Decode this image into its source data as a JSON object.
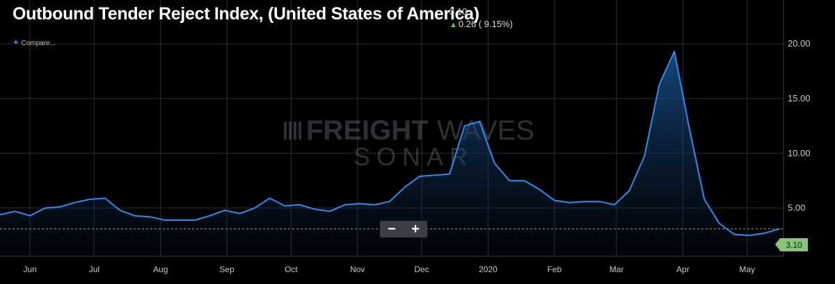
{
  "header": {
    "title": "Outbound Tender Reject Index, (United States of America)",
    "last_value": "3.10",
    "change": "0.26 ( 9.15%)",
    "compare_label": "Compare..."
  },
  "zoom": {
    "minus_label": "−",
    "plus_label": "+"
  },
  "watermark": {
    "line1_bold": "FREIGHT",
    "line1_light": "WAVES",
    "line2": "SONAR"
  },
  "current_tag": "3.10",
  "colors": {
    "line": "#2b8ef0",
    "background": "#000000",
    "grid": "#2a2f36",
    "tag": "#88c57a",
    "up_arrow": "#4fd15a"
  },
  "chart_data": {
    "type": "area",
    "title": "Outbound Tender Reject Index, (United States of America)",
    "y_ticks": [
      "5.00",
      "10.00",
      "15.00",
      "20.00"
    ],
    "x_ticks": [
      "Jun",
      "Jul",
      "Aug",
      "Sep",
      "Oct",
      "Nov",
      "Dec",
      "2020",
      "Feb",
      "Mar",
      "Apr",
      "May"
    ],
    "x_range": [
      "2019-05-18",
      "2020-05-18"
    ],
    "ylim": [
      0.6,
      24
    ],
    "grid": true,
    "reference_line": 3.1,
    "series": [
      {
        "x": [
          "2019-05-18",
          "2019-05-25",
          "2019-06-01",
          "2019-06-08",
          "2019-06-15",
          "2019-06-22",
          "2019-06-29",
          "2019-07-06",
          "2019-07-13",
          "2019-07-20",
          "2019-07-27",
          "2019-08-03",
          "2019-08-10",
          "2019-08-17",
          "2019-08-24",
          "2019-08-31",
          "2019-09-07",
          "2019-09-14",
          "2019-09-21",
          "2019-09-28",
          "2019-10-05",
          "2019-10-12",
          "2019-10-19",
          "2019-10-26",
          "2019-11-02",
          "2019-11-09",
          "2019-11-16",
          "2019-11-23",
          "2019-11-30",
          "2019-12-07",
          "2019-12-14",
          "2019-12-21",
          "2019-12-28",
          "2020-01-04",
          "2020-01-11",
          "2020-01-18",
          "2020-01-25",
          "2020-02-01",
          "2020-02-08",
          "2020-02-15",
          "2020-02-22",
          "2020-02-29",
          "2020-03-07",
          "2020-03-14",
          "2020-03-21",
          "2020-03-28",
          "2020-04-04",
          "2020-04-11",
          "2020-04-18",
          "2020-04-25",
          "2020-05-02",
          "2020-05-09",
          "2020-05-16"
        ],
        "values": [
          4.4,
          4.7,
          4.3,
          5.0,
          5.1,
          5.5,
          5.8,
          5.9,
          4.8,
          4.3,
          4.2,
          3.9,
          3.9,
          3.9,
          4.3,
          4.8,
          4.5,
          5.0,
          5.9,
          5.2,
          5.3,
          4.9,
          4.7,
          5.3,
          5.4,
          5.3,
          5.6,
          6.9,
          7.9,
          8.0,
          8.1,
          12.5,
          12.9,
          9.1,
          7.5,
          7.5,
          6.7,
          5.7,
          5.5,
          5.6,
          5.6,
          5.3,
          6.6,
          9.7,
          16.3,
          19.3,
          12.3,
          5.8,
          3.6,
          2.6,
          2.5,
          2.7,
          3.1
        ]
      }
    ]
  }
}
